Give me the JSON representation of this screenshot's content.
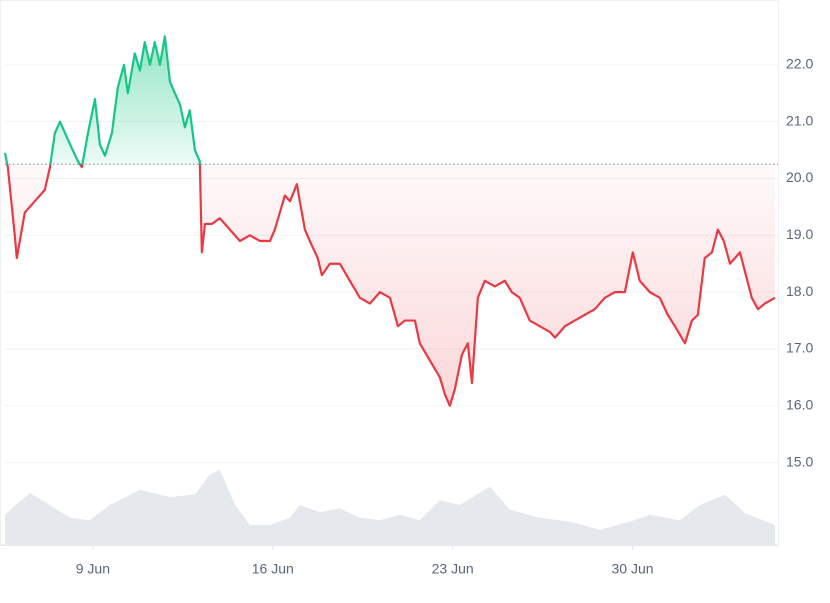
{
  "chart_data": {
    "type": "baseline-line",
    "x": [
      5.58,
      5.69,
      5.96,
      6.04,
      6.35,
      6.74,
      7.13,
      7.33,
      7.52,
      7.72,
      8.11,
      8.42,
      8.57,
      8.81,
      9.08,
      9.27,
      9.47,
      9.74,
      9.97,
      10.21,
      10.36,
      10.63,
      10.83,
      11.02,
      11.22,
      11.41,
      11.61,
      11.8,
      12.0,
      12.19,
      12.39,
      12.58,
      12.77,
      12.97,
      13.16,
      13.24,
      13.36,
      13.63,
      13.94,
      14.33,
      14.72,
      15.11,
      15.5,
      15.89,
      16.08,
      16.47,
      16.67,
      16.94,
      17.05,
      17.25,
      17.44,
      17.75,
      17.91,
      18.22,
      18.61,
      19.0,
      19.39,
      19.78,
      20.17,
      20.56,
      20.87,
      21.14,
      21.53,
      21.72,
      22.11,
      22.5,
      22.7,
      22.89,
      23.09,
      23.36,
      23.59,
      23.75,
      23.98,
      24.25,
      24.64,
      25.03,
      25.3,
      25.61,
      26.0,
      26.39,
      26.78,
      26.98,
      27.37,
      27.75,
      28.14,
      28.53,
      28.92,
      29.31,
      29.7,
      30.01,
      30.28,
      30.67,
      31.06,
      31.37,
      31.65,
      32.04,
      32.31,
      32.54,
      32.81,
      33.09,
      33.32,
      33.55,
      33.79,
      34.18,
      34.41,
      34.64,
      34.88,
      35.15,
      35.54
    ],
    "values": [
      20.45,
      20.2,
      19.0,
      18.6,
      19.4,
      19.6,
      19.8,
      20.2,
      20.8,
      21.0,
      20.6,
      20.3,
      20.2,
      20.8,
      21.4,
      20.6,
      20.4,
      20.8,
      21.6,
      22.0,
      21.5,
      22.2,
      21.9,
      22.4,
      22.0,
      22.4,
      22.0,
      22.5,
      21.7,
      21.5,
      21.3,
      20.9,
      21.2,
      20.5,
      20.3,
      18.7,
      19.2,
      19.2,
      19.3,
      19.1,
      18.9,
      19.0,
      18.9,
      18.9,
      19.1,
      19.7,
      19.6,
      19.9,
      19.6,
      19.1,
      18.9,
      18.6,
      18.3,
      18.5,
      18.5,
      18.2,
      17.9,
      17.8,
      18.0,
      17.9,
      17.4,
      17.5,
      17.5,
      17.1,
      16.8,
      16.5,
      16.2,
      16.0,
      16.3,
      16.9,
      17.1,
      16.4,
      17.9,
      18.2,
      18.1,
      18.2,
      18.0,
      17.9,
      17.5,
      17.4,
      17.3,
      17.2,
      17.4,
      17.5,
      17.6,
      17.7,
      17.9,
      18.0,
      18.0,
      18.7,
      18.2,
      18.0,
      17.9,
      17.6,
      17.4,
      17.1,
      17.5,
      17.6,
      18.6,
      18.7,
      19.1,
      18.9,
      18.5,
      18.7,
      18.3,
      17.9,
      17.7,
      17.8,
      17.9
    ],
    "baseline": 20.25,
    "up_color": "#16c784",
    "down_color": "#ea3943",
    "xlim": [
      5.58,
      35.66
    ],
    "xticks": [
      {
        "value": 9,
        "label": "9 Jun"
      },
      {
        "value": 16,
        "label": "16 Jun"
      },
      {
        "value": 23,
        "label": "23 Jun"
      },
      {
        "value": 30,
        "label": "30 Jun"
      }
    ],
    "ylim": [
      13.55,
      23.0
    ],
    "yticks": [
      {
        "value": 15,
        "label": "15.0"
      },
      {
        "value": 16,
        "label": "16.0"
      },
      {
        "value": 17,
        "label": "17.0"
      },
      {
        "value": 18,
        "label": "18.0"
      },
      {
        "value": 19,
        "label": "19.0"
      },
      {
        "value": 20,
        "label": "20.0"
      },
      {
        "value": 21,
        "label": "21.0"
      },
      {
        "value": 22,
        "label": "22.0"
      }
    ],
    "grid": true,
    "volume": {
      "color": "#e5e8ec",
      "x": [
        5.58,
        6.55,
        7.33,
        8.11,
        8.88,
        9.66,
        10.83,
        12.0,
        12.97,
        13.55,
        13.94,
        14.53,
        15.11,
        15.89,
        16.67,
        17.05,
        17.83,
        18.61,
        19.39,
        20.17,
        20.95,
        21.72,
        22.5,
        23.28,
        24.45,
        25.23,
        26.39,
        27.56,
        28.73,
        29.89,
        30.67,
        31.84,
        32.62,
        33.59,
        34.37,
        35.54
      ],
      "values": [
        38,
        65,
        50,
        34,
        31,
        50,
        69,
        60,
        63,
        88,
        94,
        50,
        25,
        25,
        34,
        50,
        41,
        46,
        34,
        31,
        38,
        31,
        56,
        50,
        73,
        44,
        34,
        29,
        19,
        29,
        38,
        31,
        50,
        63,
        40,
        25
      ],
      "lim": [
        0,
        100
      ]
    }
  }
}
